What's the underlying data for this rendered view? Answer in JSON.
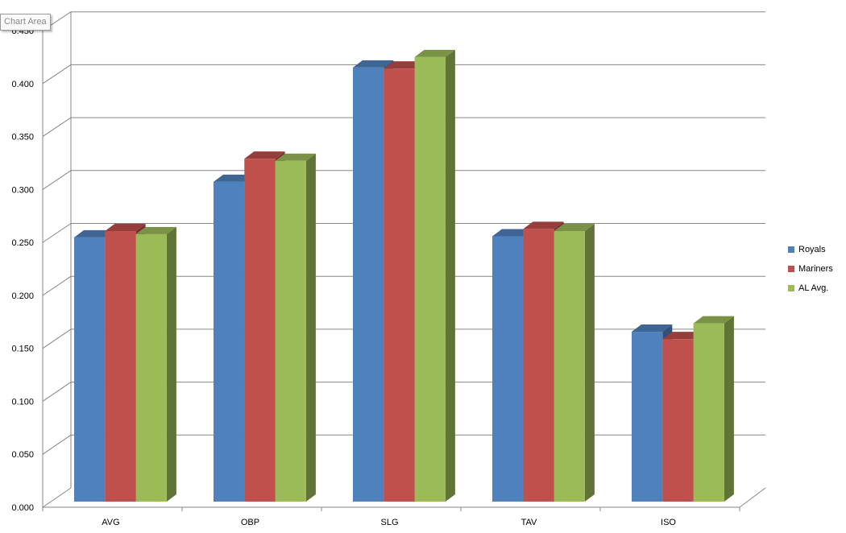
{
  "tooltip": "Chart Area",
  "chart_data": {
    "type": "bar",
    "categories": [
      "AVG",
      "OBP",
      "SLG",
      "TAV",
      "ISO"
    ],
    "series": [
      {
        "name": "Royals",
        "color": "#4F81BD",
        "values": [
          0.252,
          0.305,
          0.414,
          0.253,
          0.162
        ]
      },
      {
        "name": "Mariners",
        "color": "#C0504D",
        "values": [
          0.258,
          0.327,
          0.413,
          0.26,
          0.155
        ]
      },
      {
        "name": "AL Avg.",
        "color": "#9BBB59",
        "values": [
          0.255,
          0.325,
          0.424,
          0.258,
          0.17
        ]
      }
    ],
    "ylim": [
      0,
      0.45
    ],
    "yticks": [
      "0.000",
      "0.050",
      "0.100",
      "0.150",
      "0.200",
      "0.250",
      "0.300",
      "0.350",
      "0.400",
      "0.450"
    ],
    "grid": true,
    "legend_position": "right",
    "style": "3d-clustered-column"
  }
}
